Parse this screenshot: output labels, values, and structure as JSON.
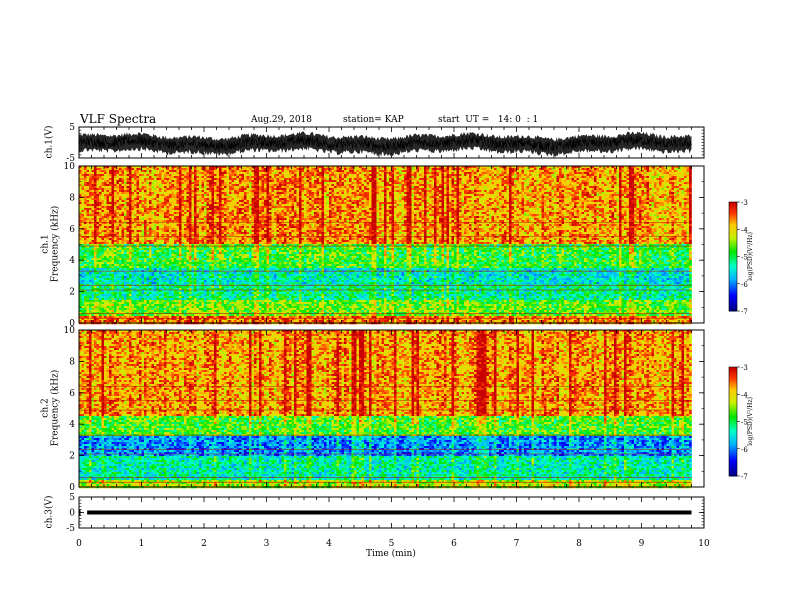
{
  "header": {
    "title": "VLF Spectra",
    "date": "Aug.29, 2018",
    "station": "station= KAP",
    "start": "start  UT =   14: 0  : 1"
  },
  "chart_data": [
    {
      "type": "line",
      "panel": "ch1-waveform",
      "ylabel": "ch.1(V)",
      "ylim": [
        -5,
        5
      ],
      "yticks": [
        "5",
        "-5"
      ],
      "xlim": [
        0,
        10
      ],
      "series_style": "noisy black trace roughly between -3.5 and 3"
    },
    {
      "type": "heatmap",
      "panel": "ch1-spectrogram",
      "ylabel_line1": "ch.1",
      "ylabel_line2": "Frequency  (kHz)",
      "ylim": [
        0,
        10
      ],
      "yticks": [
        "0",
        "2",
        "4",
        "6",
        "8",
        "10"
      ],
      "xlim": [
        0,
        10
      ],
      "colorbar": {
        "label": "log(PSD)(V²/Hz)",
        "range": [
          -7,
          -3
        ],
        "ticks": [
          "-3",
          "-4",
          "-5",
          "-6",
          "-7"
        ]
      },
      "bands": [
        {
          "from_khz": 0,
          "to_khz": 0.5,
          "level": -3.6
        },
        {
          "from_khz": 0.5,
          "to_khz": 1.5,
          "level": -4.6
        },
        {
          "from_khz": 1.5,
          "to_khz": 2.5,
          "level": -5.2
        },
        {
          "from_khz": 2.5,
          "to_khz": 3.5,
          "level": -5.4
        },
        {
          "from_khz": 3.5,
          "to_khz": 5.0,
          "level": -4.8
        },
        {
          "from_khz": 5.0,
          "to_khz": 10,
          "level": -3.7
        }
      ]
    },
    {
      "type": "heatmap",
      "panel": "ch2-spectrogram",
      "ylabel_line1": "ch.2",
      "ylabel_line2": "Frequency  (kHz)",
      "ylim": [
        0,
        10
      ],
      "yticks": [
        "0",
        "2",
        "4",
        "6",
        "8",
        "10"
      ],
      "xlim": [
        0,
        10
      ],
      "colorbar": {
        "label": "log(PSD)(V²/Hz)",
        "range": [
          -7,
          -3
        ],
        "ticks": [
          "-3",
          "-4",
          "-5",
          "-6",
          "-7"
        ]
      },
      "bands": [
        {
          "from_khz": 0,
          "to_khz": 0.5,
          "level": -4.3
        },
        {
          "from_khz": 0.5,
          "to_khz": 2.0,
          "level": -5.3
        },
        {
          "from_khz": 2.0,
          "to_khz": 3.2,
          "level": -5.9
        },
        {
          "from_khz": 3.2,
          "to_khz": 4.5,
          "level": -4.7
        },
        {
          "from_khz": 4.5,
          "to_khz": 10,
          "level": -3.7
        }
      ]
    },
    {
      "type": "line",
      "panel": "ch3-waveform",
      "ylabel": "ch.3(V)",
      "ylim": [
        -5,
        5
      ],
      "yticks": [
        "5",
        "0",
        "-5"
      ],
      "xlim": [
        0,
        10
      ],
      "xlabel": "Time  (min)",
      "xticks": [
        "0",
        "1",
        "2",
        "3",
        "4",
        "5",
        "6",
        "7",
        "8",
        "9",
        "10"
      ],
      "constant_value": 0,
      "series_style": "flat thick black line at 0"
    }
  ]
}
